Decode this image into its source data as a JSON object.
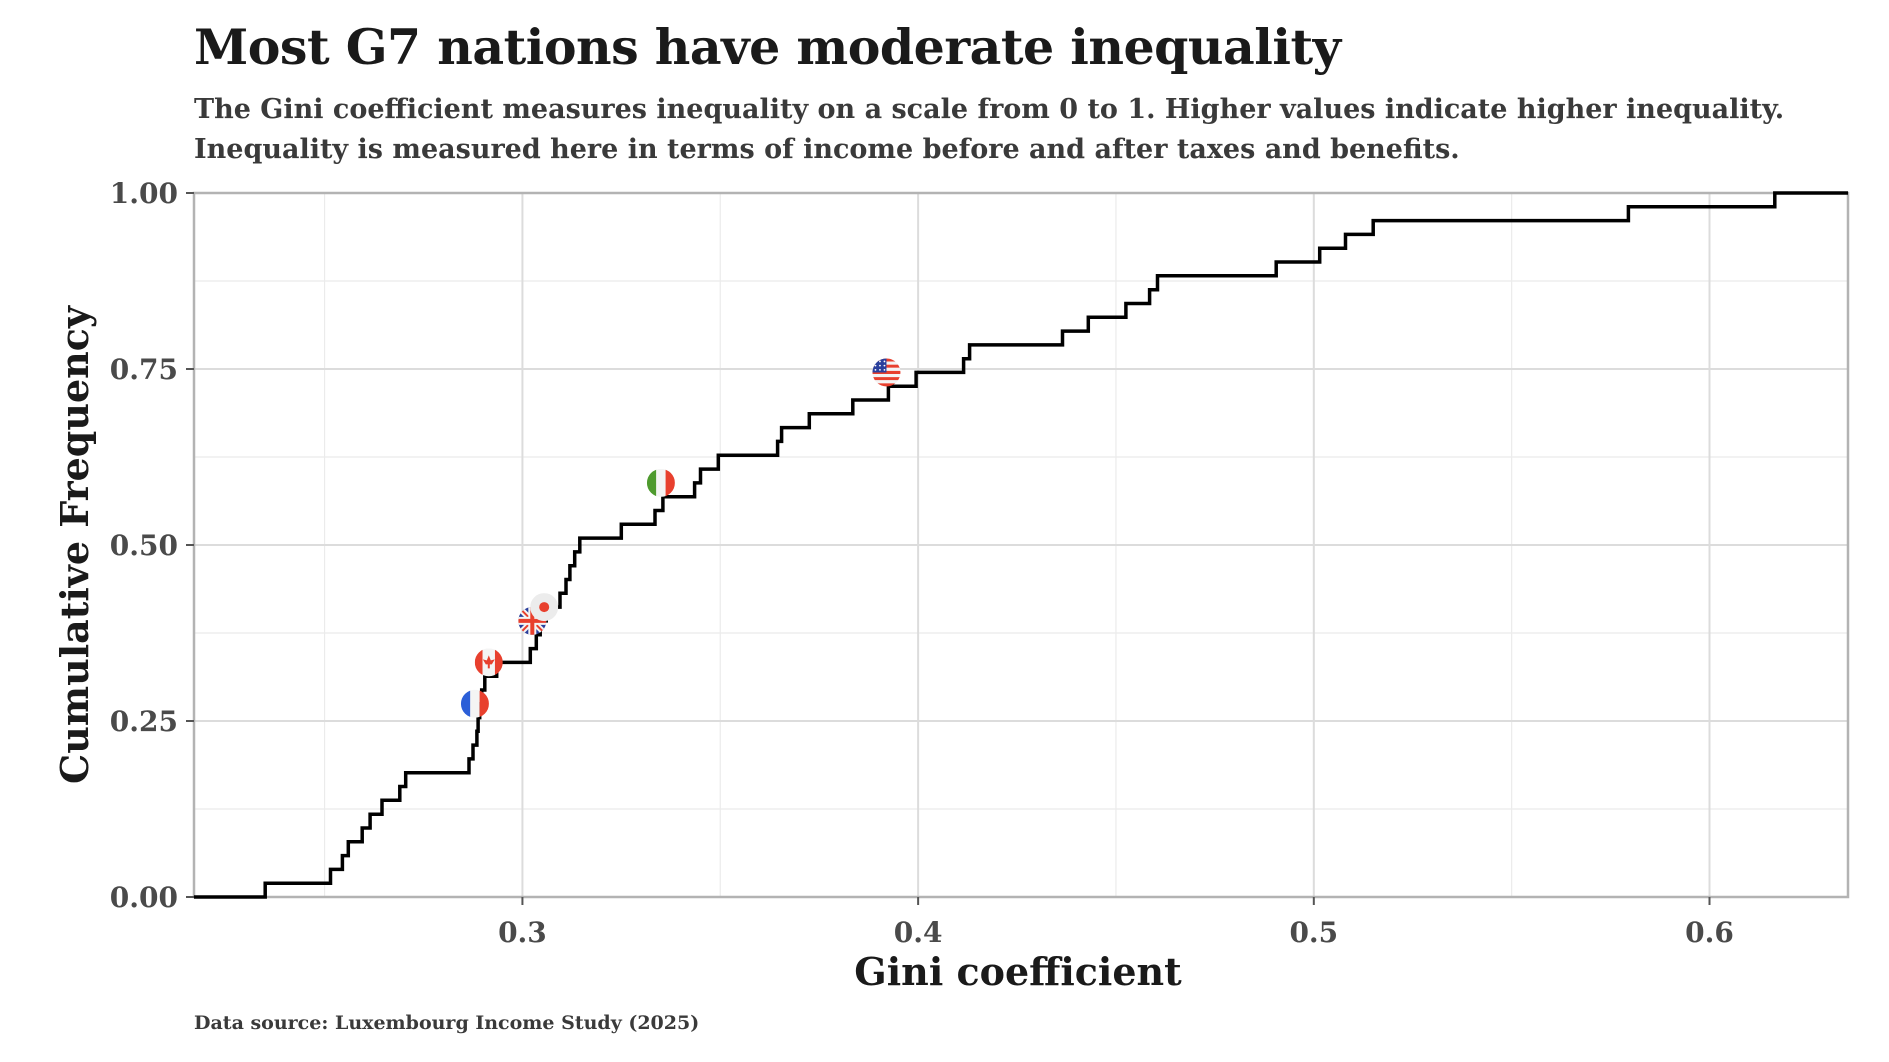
{
  "chart_data": {
    "type": "line",
    "step": true,
    "title": "Most G7 nations have moderate inequality",
    "subtitle_lines": [
      "The Gini coefficient measures inequality on a scale from 0 to 1. Higher values indicate higher inequality.",
      "Inequality is measured here in terms of income before and after taxes and benefits."
    ],
    "xlabel": "Gini coefficient",
    "ylabel": "Cumulative Frequency",
    "xlim": [
      0.217,
      0.635
    ],
    "ylim": [
      0,
      1
    ],
    "x_ticks": [
      0.3,
      0.4,
      0.5,
      0.6
    ],
    "x_tick_labels": [
      "0.3",
      "0.4",
      "0.5",
      "0.6"
    ],
    "y_ticks": [
      0,
      0.25,
      0.5,
      0.75,
      1
    ],
    "y_tick_labels": [
      "0.00",
      "0.25",
      "0.50",
      "0.75",
      "1.00"
    ],
    "grid": true,
    "series": [
      {
        "values": [
          [
            0.235,
            0.0196
          ],
          [
            0.2515,
            0.0392
          ],
          [
            0.2545,
            0.0588
          ],
          [
            0.256,
            0.0784
          ],
          [
            0.2595,
            0.098
          ],
          [
            0.2615,
            0.1176
          ],
          [
            0.2645,
            0.1373
          ],
          [
            0.269,
            0.1569
          ],
          [
            0.2705,
            0.1765
          ],
          [
            0.2865,
            0.1961
          ],
          [
            0.2875,
            0.2157
          ],
          [
            0.2885,
            0.2353
          ],
          [
            0.2888,
            0.2549
          ],
          [
            0.2892,
            0.2745
          ],
          [
            0.2897,
            0.2941
          ],
          [
            0.2905,
            0.3137
          ],
          [
            0.2935,
            0.3333
          ],
          [
            0.302,
            0.3529
          ],
          [
            0.3035,
            0.3725
          ],
          [
            0.3045,
            0.3922
          ],
          [
            0.306,
            0.4118
          ],
          [
            0.3095,
            0.4314
          ],
          [
            0.311,
            0.451
          ],
          [
            0.312,
            0.4706
          ],
          [
            0.3132,
            0.4902
          ],
          [
            0.3145,
            0.5098
          ],
          [
            0.325,
            0.5294
          ],
          [
            0.3335,
            0.549
          ],
          [
            0.3355,
            0.5686
          ],
          [
            0.3435,
            0.5882
          ],
          [
            0.345,
            0.6078
          ],
          [
            0.3495,
            0.6275
          ],
          [
            0.3645,
            0.6471
          ],
          [
            0.3655,
            0.6667
          ],
          [
            0.3725,
            0.6863
          ],
          [
            0.3835,
            0.7059
          ],
          [
            0.3925,
            0.7255
          ],
          [
            0.3995,
            0.7451
          ],
          [
            0.4115,
            0.7647
          ],
          [
            0.413,
            0.7843
          ],
          [
            0.4365,
            0.8039
          ],
          [
            0.443,
            0.8235
          ],
          [
            0.4525,
            0.8431
          ],
          [
            0.4585,
            0.8627
          ],
          [
            0.4605,
            0.8824
          ],
          [
            0.4905,
            0.902
          ],
          [
            0.5015,
            0.9216
          ],
          [
            0.508,
            0.9412
          ],
          [
            0.515,
            0.9608
          ],
          [
            0.5795,
            0.9804
          ],
          [
            0.6165,
            1.0
          ]
        ],
        "color": "#000000"
      }
    ],
    "country_markers": [
      {
        "x": 0.288,
        "y": 0.2745,
        "icon": "flag-france-icon"
      },
      {
        "x": 0.2915,
        "y": 0.3333,
        "icon": "flag-canada-icon"
      },
      {
        "x": 0.3025,
        "y": 0.3922,
        "icon": "flag-uk-icon"
      },
      {
        "x": 0.3055,
        "y": 0.4118,
        "icon": "flag-japan-icon"
      },
      {
        "x": 0.335,
        "y": 0.5882,
        "icon": "flag-italy-icon"
      },
      {
        "x": 0.392,
        "y": 0.7451,
        "icon": "flag-usa-icon"
      }
    ]
  },
  "header": {
    "title": "Most G7 nations have moderate inequality",
    "subtitle_1": "The Gini coefficient measures inequality on a scale from 0 to 1. Higher values indicate higher inequality.",
    "subtitle_2": "Inequality is measured here in terms of income before and after taxes and benefits."
  },
  "footer": {
    "source": "Data source: Luxembourg Income Study (2025)"
  }
}
